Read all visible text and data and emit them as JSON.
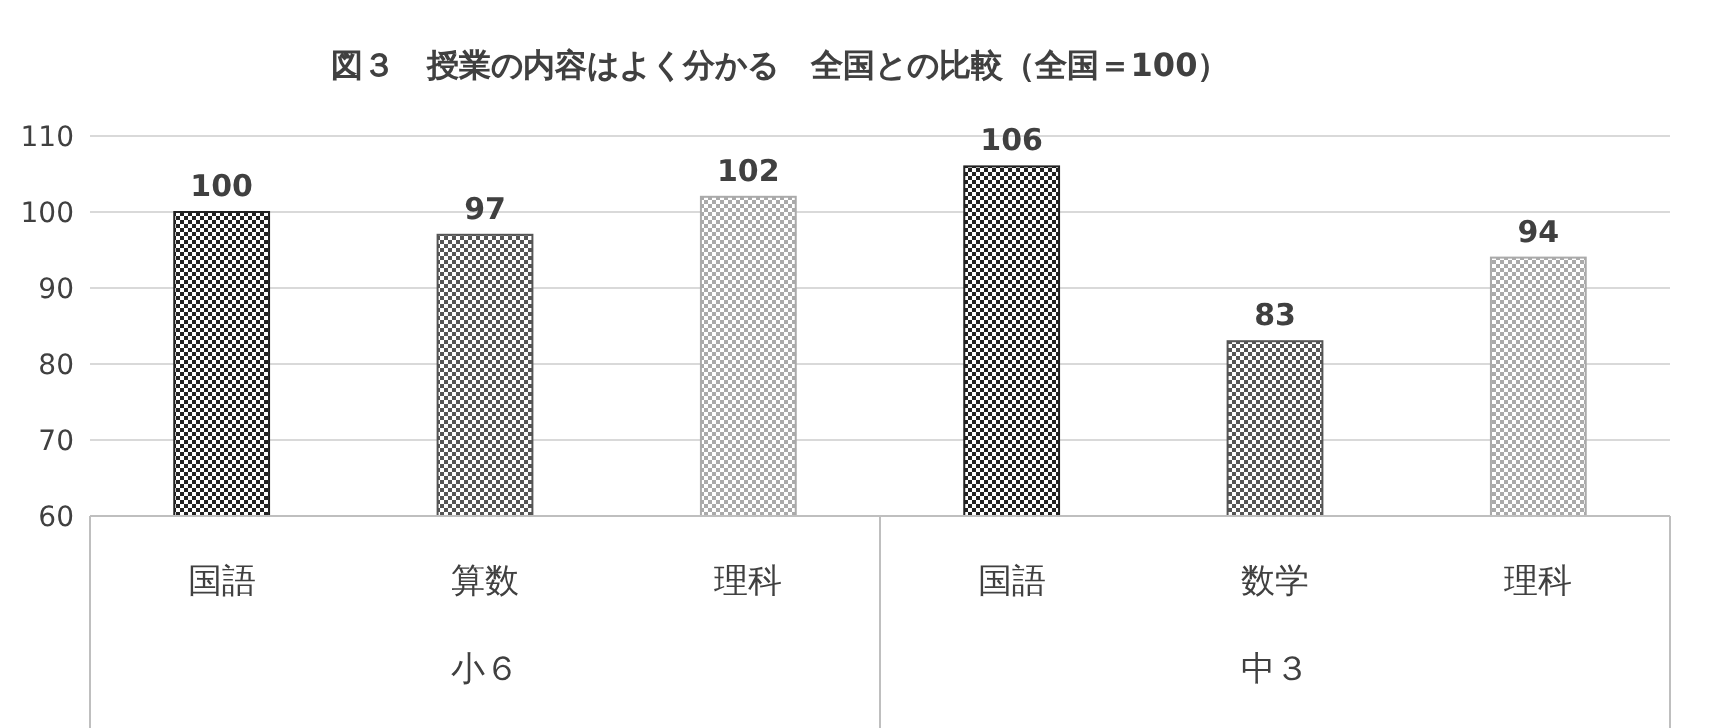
{
  "chart_data": {
    "type": "bar",
    "title": "図３　授業の内容はよく分かる　全国との比較（全国＝100）",
    "categories": [
      "国語",
      "算数",
      "理科",
      "国語",
      "数学",
      "理科"
    ],
    "values": [
      100,
      97,
      102,
      106,
      83,
      94
    ],
    "colors": [
      "#222222",
      "#555555",
      "#aaaaaa",
      "#222222",
      "#555555",
      "#aaaaaa"
    ],
    "annotations": [
      "小６",
      "中３"
    ],
    "ylim": [
      60,
      110
    ],
    "yticks": [
      60,
      70,
      80,
      90,
      100,
      110
    ],
    "grid": "y",
    "data_labels": true
  }
}
